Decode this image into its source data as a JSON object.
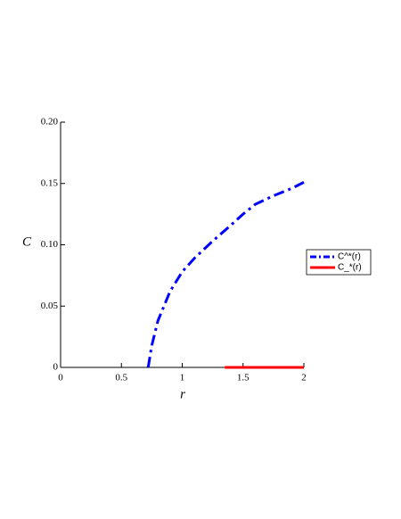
{
  "chart_data": {
    "type": "line",
    "xlabel": "r",
    "ylabel": "C",
    "xlim": [
      0,
      2
    ],
    "ylim": [
      0,
      0.2
    ],
    "xticks": [
      0,
      0.5,
      1,
      1.5,
      2
    ],
    "yticks": [
      0,
      0.05,
      {
        "value": 0.1,
        "label": "0.10"
      },
      0.15,
      {
        "value": 0.2,
        "label": "0.20"
      }
    ],
    "series": [
      {
        "name": "C^*(r)",
        "color": "#0000ff",
        "dash": "dashdot",
        "x": [
          0.72,
          0.75,
          0.8,
          0.85,
          0.9,
          1,
          1.1,
          1.25,
          1.4,
          1.5,
          1.6,
          1.75,
          1.9,
          2
        ],
        "values": [
          0,
          0.018,
          0.038,
          0.05,
          0.062,
          0.078,
          0.089,
          0.103,
          0.116,
          0.125,
          0.133,
          0.14,
          0.146,
          0.151
        ]
      },
      {
        "name": "C_*(r)",
        "color": "#ff0000",
        "dash": "solid",
        "x": [
          1.35,
          2
        ],
        "values": [
          0,
          0
        ]
      }
    ]
  }
}
